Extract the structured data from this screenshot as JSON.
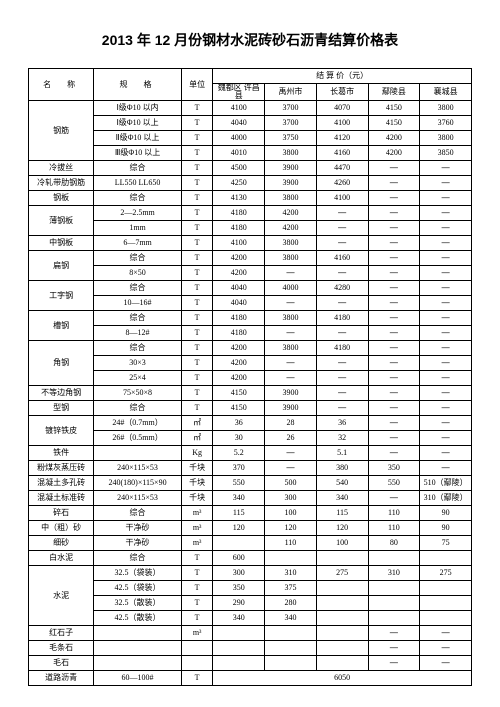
{
  "title": "2013 年 12 月份钢材水泥砖砂石沥青结算价格表",
  "header": {
    "name": "名　称",
    "spec": "规　格",
    "unit": "单位",
    "priceGroup": "结 算 价（元）",
    "cols": [
      "魏都区 许昌县",
      "禹州市",
      "长葛市",
      "鄢陵县",
      "襄城县"
    ]
  },
  "dash": "—",
  "sections": [
    {
      "name": "钢筋",
      "rows": [
        {
          "spec": "Ⅰ级Φ10 以内",
          "unit": "T",
          "v": [
            "4100",
            "3700",
            "4070",
            "4150",
            "3800"
          ]
        },
        {
          "spec": "Ⅰ级Φ10 以上",
          "unit": "T",
          "v": [
            "4040",
            "3700",
            "4100",
            "4150",
            "3760"
          ]
        },
        {
          "spec": "Ⅱ级Φ10 以上",
          "unit": "T",
          "v": [
            "4000",
            "3750",
            "4120",
            "4200",
            "3800"
          ]
        },
        {
          "spec": "Ⅲ级Φ10 以上",
          "unit": "T",
          "v": [
            "4010",
            "3800",
            "4160",
            "4200",
            "3850"
          ]
        }
      ]
    },
    {
      "name": "冷拔丝",
      "rows": [
        {
          "spec": "综合",
          "unit": "T",
          "v": [
            "4500",
            "3900",
            "4470",
            "—",
            "—"
          ]
        }
      ]
    },
    {
      "name": "冷轧带肋钢筋",
      "rows": [
        {
          "spec": "LL550 LL650",
          "unit": "T",
          "v": [
            "4250",
            "3900",
            "4260",
            "—",
            "—"
          ]
        }
      ]
    },
    {
      "name": "钢板",
      "rows": [
        {
          "spec": "综合",
          "unit": "T",
          "v": [
            "4130",
            "3800",
            "4100",
            "—",
            "—"
          ]
        }
      ]
    },
    {
      "name": "薄钢板",
      "rows": [
        {
          "spec": "2—2.5mm",
          "unit": "T",
          "v": [
            "4180",
            "4200",
            "—",
            "—",
            "—"
          ]
        },
        {
          "spec": "1mm",
          "unit": "T",
          "v": [
            "4180",
            "4200",
            "—",
            "—",
            "—"
          ]
        }
      ]
    },
    {
      "name": "中钢板",
      "rows": [
        {
          "spec": "6—7mm",
          "unit": "T",
          "v": [
            "4100",
            "3800",
            "—",
            "—",
            "—"
          ]
        }
      ]
    },
    {
      "name": "扁钢",
      "rows": [
        {
          "spec": "综合",
          "unit": "T",
          "v": [
            "4200",
            "3800",
            "4160",
            "—",
            "—"
          ]
        },
        {
          "spec": "8×50",
          "unit": "T",
          "v": [
            "4200",
            "—",
            "—",
            "—",
            "—"
          ]
        }
      ]
    },
    {
      "name": "工字钢",
      "rows": [
        {
          "spec": "综合",
          "unit": "T",
          "v": [
            "4040",
            "4000",
            "4280",
            "—",
            "—"
          ]
        },
        {
          "spec": "10—16#",
          "unit": "T",
          "v": [
            "4040",
            "—",
            "—",
            "—",
            "—"
          ]
        }
      ]
    },
    {
      "name": "槽钢",
      "rows": [
        {
          "spec": "综合",
          "unit": "T",
          "v": [
            "4180",
            "3800",
            "4180",
            "—",
            "—"
          ]
        },
        {
          "spec": "8—12#",
          "unit": "T",
          "v": [
            "4180",
            "—",
            "—",
            "—",
            "—"
          ]
        }
      ]
    },
    {
      "name": "角钢",
      "rows": [
        {
          "spec": "综合",
          "unit": "T",
          "v": [
            "4200",
            "3800",
            "4180",
            "—",
            "—"
          ]
        },
        {
          "spec": "30×3",
          "unit": "T",
          "v": [
            "4200",
            "—",
            "—",
            "—",
            "—"
          ]
        },
        {
          "spec": "25×4",
          "unit": "T",
          "v": [
            "4200",
            "—",
            "—",
            "—",
            "—"
          ]
        }
      ]
    },
    {
      "name": "不等边角钢",
      "rows": [
        {
          "spec": "75×50×8",
          "unit": "T",
          "v": [
            "4150",
            "3900",
            "—",
            "—",
            "—"
          ]
        }
      ]
    },
    {
      "name": "型钢",
      "rows": [
        {
          "spec": "综合",
          "unit": "T",
          "v": [
            "4150",
            "3900",
            "—",
            "—",
            "—"
          ]
        }
      ]
    },
    {
      "name": "镀锌铁皮",
      "rows": [
        {
          "spec": "24#（0.7mm）",
          "unit": "㎡",
          "v": [
            "36",
            "28",
            "36",
            "—",
            "—"
          ]
        },
        {
          "spec": "26#（0.5mm）",
          "unit": "㎡",
          "v": [
            "30",
            "26",
            "32",
            "—",
            "—"
          ]
        }
      ]
    },
    {
      "name": "铁件",
      "rows": [
        {
          "spec": "",
          "unit": "Kg",
          "v": [
            "5.2",
            "—",
            "5.1",
            "—",
            "—"
          ]
        }
      ]
    },
    {
      "name": "粉煤灰蒸压砖",
      "rows": [
        {
          "spec": "240×115×53",
          "unit": "千块",
          "v": [
            "370",
            "—",
            "380",
            "350",
            "—"
          ]
        }
      ]
    },
    {
      "name": "混凝土多孔砖",
      "rows": [
        {
          "spec": "240(180)×115×90",
          "unit": "千块",
          "v": [
            "550",
            "500",
            "540",
            "550",
            "510（鄢陵）"
          ]
        }
      ]
    },
    {
      "name": "混凝土标准砖",
      "rows": [
        {
          "spec": "240×115×53",
          "unit": "千块",
          "v": [
            "340",
            "300",
            "340",
            "—",
            "310（鄢陵）"
          ]
        }
      ]
    },
    {
      "name": "碎石",
      "rows": [
        {
          "spec": "综合",
          "unit": "m³",
          "v": [
            "115",
            "100",
            "115",
            "110",
            "90"
          ]
        }
      ]
    },
    {
      "name": "中（粗）砂",
      "rows": [
        {
          "spec": "干净砂",
          "unit": "m³",
          "v": [
            "120",
            "120",
            "120",
            "110",
            "90"
          ]
        }
      ]
    },
    {
      "name": "细砂",
      "rows": [
        {
          "spec": "干净砂",
          "unit": "m³",
          "v": [
            "",
            "110",
            "100",
            "80",
            "75"
          ]
        }
      ]
    },
    {
      "name": "白水泥",
      "rows": [
        {
          "spec": "综合",
          "unit": "T",
          "v": [
            "600",
            "",
            "",
            "",
            ""
          ]
        }
      ]
    },
    {
      "name": "水泥",
      "rows": [
        {
          "spec": "32.5（袋装）",
          "unit": "T",
          "v": [
            "300",
            "310",
            "275",
            "310",
            "275"
          ]
        },
        {
          "spec": "42.5（袋装）",
          "unit": "T",
          "v": [
            "350",
            "375",
            "",
            "",
            ""
          ]
        },
        {
          "spec": "32.5（散装）",
          "unit": "T",
          "v": [
            "290",
            "280",
            "",
            "",
            ""
          ]
        },
        {
          "spec": "42.5（散装）",
          "unit": "T",
          "v": [
            "340",
            "340",
            "",
            "",
            ""
          ]
        }
      ]
    },
    {
      "name": "红石子",
      "rows": [
        {
          "spec": "",
          "unit": "m³",
          "v": [
            "",
            "",
            "",
            "—",
            "—"
          ]
        }
      ]
    },
    {
      "name": "毛条石",
      "rows": [
        {
          "spec": "",
          "unit": "",
          "v": [
            "",
            "",
            "",
            "—",
            "—"
          ]
        }
      ]
    },
    {
      "name": "毛石",
      "rows": [
        {
          "spec": "",
          "unit": "",
          "v": [
            "",
            "",
            "",
            "—",
            "—"
          ]
        }
      ]
    }
  ],
  "lastRow": {
    "name": "道路沥青",
    "spec": "60—100#",
    "unit": "T",
    "merged": "6050"
  }
}
